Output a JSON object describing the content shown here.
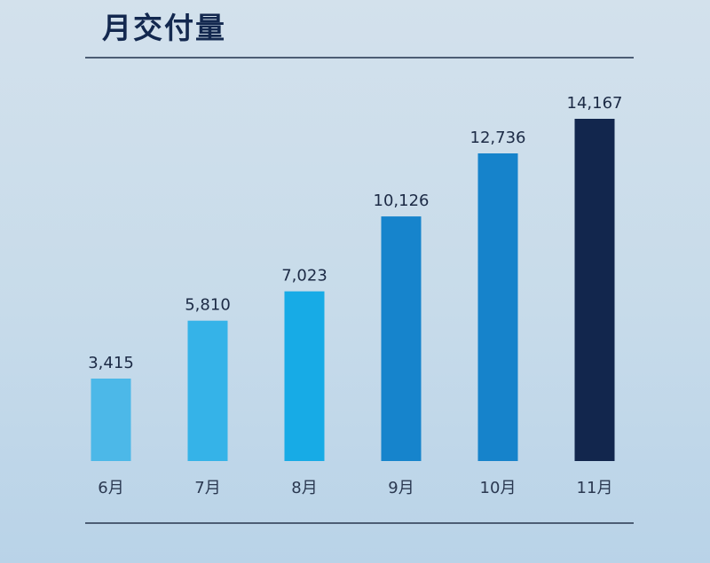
{
  "chart_data": {
    "type": "bar",
    "title": "月交付量",
    "categories": [
      "6月",
      "7月",
      "8月",
      "9月",
      "10月",
      "11月"
    ],
    "values": [
      3415,
      5810,
      7023,
      10126,
      12736,
      14167
    ],
    "value_labels": [
      "3,415",
      "5,810",
      "7,023",
      "10,126",
      "12,736",
      "14,167"
    ],
    "colors": [
      "#4cb8e8",
      "#35b3e8",
      "#17abe6",
      "#1684cc",
      "#1683cb",
      "#12264d"
    ],
    "xlabel": "",
    "ylabel": "",
    "ylim": [
      0,
      14167
    ],
    "grid": false,
    "legend": "none"
  }
}
